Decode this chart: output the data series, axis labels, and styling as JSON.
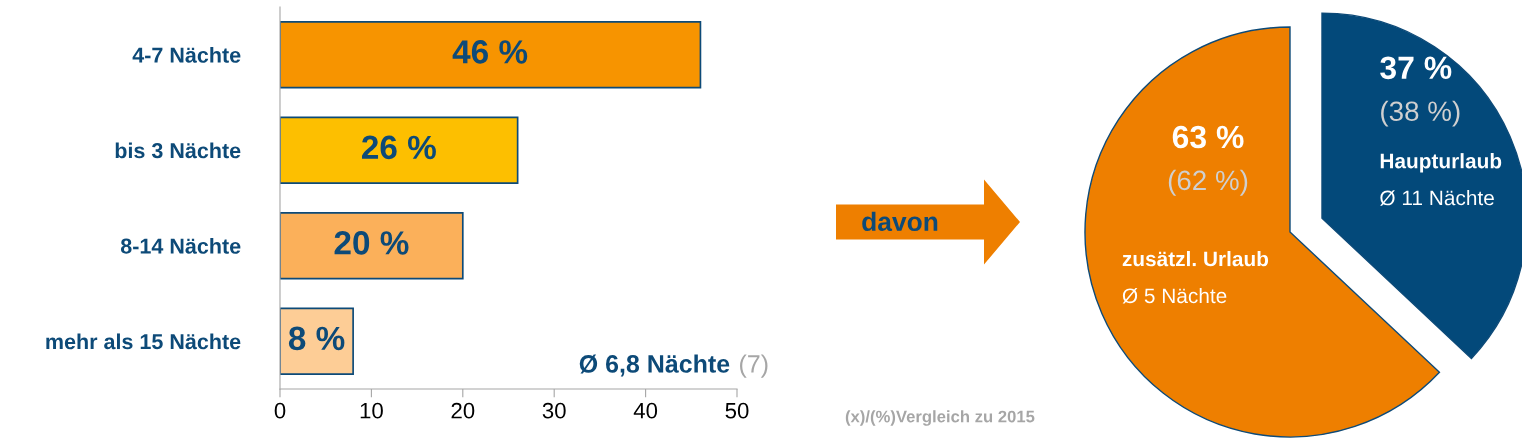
{
  "chart_data": [
    {
      "type": "bar",
      "orientation": "horizontal",
      "categories": [
        "4-7 Nächte",
        "bis 3 Nächte",
        "8-14 Nächte",
        "mehr als 15 Nächte"
      ],
      "values": [
        46,
        26,
        20,
        8
      ],
      "colors": [
        "#f79400",
        "#fdbf00",
        "#fbb05a",
        "#fdcd96"
      ],
      "value_labels": [
        "46 %",
        "26 %",
        "20 %",
        "8 %"
      ],
      "xlim": [
        0,
        50
      ],
      "xticks": [
        0,
        10,
        20,
        30,
        40,
        50
      ],
      "grid": false,
      "legend": false,
      "annotations": [
        "Ø 6,8 Nächte",
        "(7)"
      ]
    },
    {
      "type": "pie",
      "categories": [
        "Haupturlaub",
        "zusätzl. Urlaub"
      ],
      "values": [
        37,
        63
      ],
      "colors": [
        "#03497a",
        "#ee7f00"
      ],
      "value_labels": [
        "37 %",
        "63 %"
      ],
      "annotations": [
        "(38 %)",
        "(62 %)",
        "Ø 11 Nächte",
        "Ø 5 Nächte",
        "davon",
        "(x)/(%)Vergleich zu 2015"
      ]
    }
  ]
}
